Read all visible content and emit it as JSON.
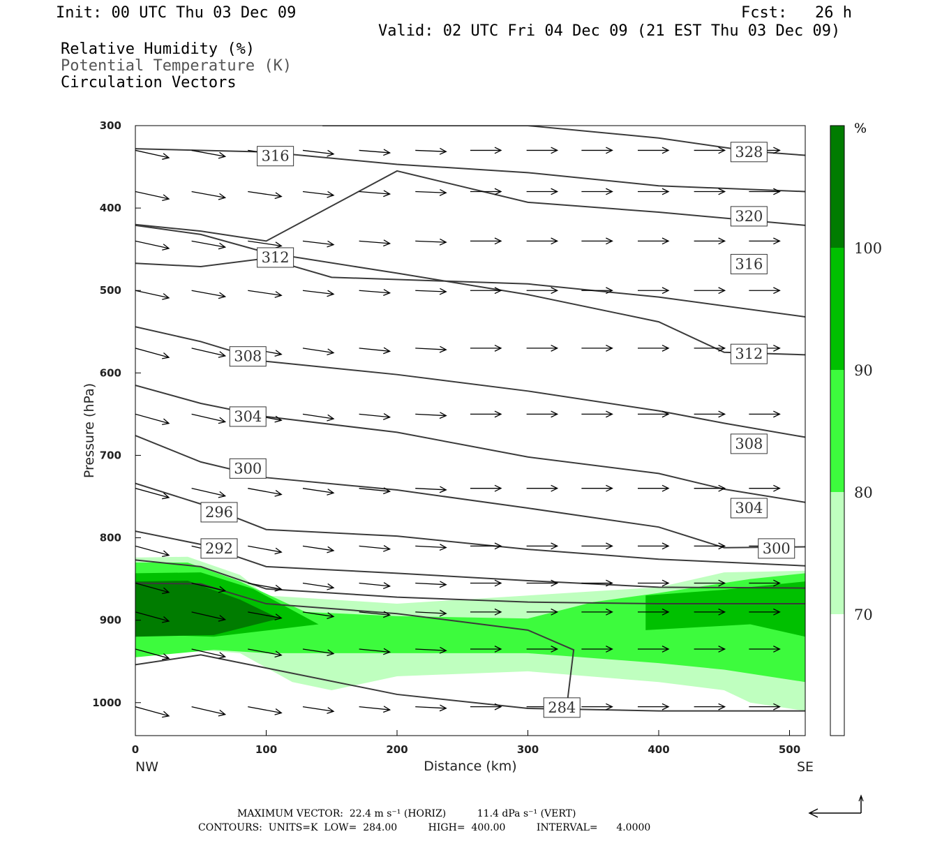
{
  "header": {
    "init": "Init: 00 UTC Thu 03 Dec 09",
    "fcst": "Fcst:   26 h",
    "valid": "Valid: 02 UTC Fri 04 Dec 09 (21 EST Thu 03 Dec 09)",
    "field1": "Relative Humidity (%)",
    "field2": "Potential Temperature (K)",
    "field3": "Circulation Vectors"
  },
  "footer": {
    "line1": "MAXIMUM VECTOR:  22.4 m s⁻¹ (HORIZ)          11.4 dPa s⁻¹ (VERT)",
    "line2": "CONTOURS:  UNITS=K  LOW=  284.00          HIGH=  400.00          INTERVAL=      4.0000"
  },
  "colors": {
    "rh70": "#bfffbf",
    "rh80": "#3dfb3d",
    "rh90": "#00c000",
    "rh100": "#007c00",
    "contour": "#3a3a3a"
  },
  "chart_data": {
    "type": "cross-section",
    "xlabel": "Distance (km)",
    "ylabel": "Pressure (hPa)",
    "x_end_labels": [
      "NW",
      "SE"
    ],
    "xlim": [
      0,
      512
    ],
    "ylim": [
      300,
      1040
    ],
    "x_ticks": [
      0,
      100,
      200,
      300,
      400,
      500
    ],
    "y_ticks": [
      300,
      400,
      500,
      600,
      700,
      800,
      900,
      1000
    ],
    "colorbar": {
      "unit": "%",
      "levels": [
        70,
        80,
        90,
        100
      ]
    },
    "contour_labels": [
      {
        "text": "316",
        "x": 107,
        "p": 337
      },
      {
        "text": "328",
        "x": 469,
        "p": 332
      },
      {
        "text": "320",
        "x": 469,
        "p": 410
      },
      {
        "text": "312",
        "x": 107,
        "p": 460
      },
      {
        "text": "316",
        "x": 469,
        "p": 468
      },
      {
        "text": "312",
        "x": 469,
        "p": 577
      },
      {
        "text": "308",
        "x": 86,
        "p": 580
      },
      {
        "text": "304",
        "x": 86,
        "p": 653
      },
      {
        "text": "308",
        "x": 469,
        "p": 686
      },
      {
        "text": "300",
        "x": 86,
        "p": 716
      },
      {
        "text": "296",
        "x": 64,
        "p": 769
      },
      {
        "text": "304",
        "x": 469,
        "p": 764
      },
      {
        "text": "292",
        "x": 64,
        "p": 813
      },
      {
        "text": "300",
        "x": 490,
        "p": 813
      },
      {
        "text": "284",
        "x": 326,
        "p": 1006
      }
    ],
    "theta_contours": [
      {
        "pts": [
          [
            143,
            300
          ],
          [
            300,
            300
          ],
          [
            400,
            315
          ],
          [
            470,
            331
          ],
          [
            512,
            336
          ]
        ]
      },
      {
        "pts": [
          [
            0,
            328
          ],
          [
            100,
            332
          ],
          [
            200,
            347
          ],
          [
            300,
            357
          ],
          [
            400,
            373
          ],
          [
            512,
            380
          ]
        ]
      },
      {
        "pts": [
          [
            0,
            420
          ],
          [
            50,
            428
          ],
          [
            100,
            440
          ],
          [
            200,
            355
          ],
          [
            300,
            393
          ],
          [
            400,
            405
          ],
          [
            512,
            421
          ]
        ]
      },
      {
        "pts": [
          [
            0,
            467
          ],
          [
            50,
            471
          ],
          [
            100,
            461
          ],
          [
            150,
            484
          ],
          [
            300,
            492
          ],
          [
            400,
            508
          ],
          [
            512,
            532
          ]
        ]
      },
      {
        "pts": [
          [
            0,
            421
          ],
          [
            50,
            432
          ],
          [
            100,
            454
          ],
          [
            200,
            479
          ],
          [
            300,
            505
          ],
          [
            400,
            538
          ],
          [
            450,
            575
          ],
          [
            512,
            578
          ]
        ]
      },
      {
        "pts": [
          [
            0,
            544
          ],
          [
            50,
            562
          ],
          [
            100,
            586
          ],
          [
            200,
            602
          ],
          [
            300,
            622
          ],
          [
            400,
            646
          ],
          [
            450,
            661
          ],
          [
            512,
            678
          ]
        ]
      },
      {
        "pts": [
          [
            0,
            615
          ],
          [
            50,
            637
          ],
          [
            100,
            653
          ],
          [
            200,
            672
          ],
          [
            300,
            702
          ],
          [
            400,
            722
          ],
          [
            450,
            741
          ],
          [
            512,
            757
          ]
        ]
      },
      {
        "pts": [
          [
            0,
            676
          ],
          [
            50,
            708
          ],
          [
            100,
            727
          ],
          [
            200,
            742
          ],
          [
            300,
            764
          ],
          [
            400,
            787
          ],
          [
            450,
            812
          ],
          [
            512,
            811
          ]
        ]
      },
      {
        "pts": [
          [
            0,
            734
          ],
          [
            50,
            759
          ],
          [
            100,
            790
          ],
          [
            200,
            798
          ],
          [
            300,
            814
          ],
          [
            400,
            826
          ],
          [
            512,
            834
          ]
        ]
      },
      {
        "pts": [
          [
            0,
            792
          ],
          [
            50,
            808
          ],
          [
            100,
            835
          ],
          [
            200,
            843
          ],
          [
            300,
            852
          ],
          [
            400,
            860
          ],
          [
            512,
            861
          ]
        ]
      },
      {
        "pts": [
          [
            0,
            827
          ],
          [
            50,
            835
          ],
          [
            100,
            862
          ],
          [
            200,
            872
          ],
          [
            300,
            878
          ],
          [
            400,
            880
          ],
          [
            512,
            880
          ]
        ]
      },
      {
        "pts": [
          [
            0,
            855
          ],
          [
            50,
            856
          ],
          [
            100,
            880
          ],
          [
            200,
            892
          ],
          [
            300,
            912
          ],
          [
            335,
            936
          ],
          [
            330,
            1001
          ]
        ]
      },
      {
        "pts": [
          [
            0,
            954
          ],
          [
            50,
            942
          ],
          [
            100,
            958
          ],
          [
            200,
            990
          ],
          [
            300,
            1007
          ],
          [
            400,
            1010
          ],
          [
            512,
            1010
          ]
        ]
      }
    ],
    "rh_regions": [
      {
        "level": 70,
        "pts": [
          [
            0,
            824
          ],
          [
            40,
            823
          ],
          [
            80,
            845
          ],
          [
            100,
            870
          ],
          [
            200,
            880
          ],
          [
            300,
            870
          ],
          [
            400,
            860
          ],
          [
            450,
            842
          ],
          [
            512,
            840
          ],
          [
            512,
            1010
          ],
          [
            470,
            1000
          ],
          [
            450,
            985
          ],
          [
            400,
            975
          ],
          [
            300,
            962
          ],
          [
            200,
            968
          ],
          [
            150,
            985
          ],
          [
            120,
            975
          ],
          [
            80,
            940
          ],
          [
            0,
            930
          ]
        ]
      },
      {
        "level": 80,
        "pts": [
          [
            0,
            830
          ],
          [
            40,
            830
          ],
          [
            80,
            853
          ],
          [
            130,
            890
          ],
          [
            200,
            895
          ],
          [
            300,
            898
          ],
          [
            350,
            878
          ],
          [
            400,
            867
          ],
          [
            470,
            850
          ],
          [
            512,
            843
          ],
          [
            512,
            975
          ],
          [
            450,
            960
          ],
          [
            400,
            952
          ],
          [
            300,
            940
          ],
          [
            200,
            940
          ],
          [
            100,
            940
          ],
          [
            60,
            936
          ],
          [
            0,
            945
          ]
        ]
      },
      {
        "level": 90,
        "pts": [
          [
            0,
            843
          ],
          [
            50,
            842
          ],
          [
            90,
            862
          ],
          [
            140,
            905
          ],
          [
            60,
            920
          ],
          [
            0,
            917
          ]
        ]
      },
      {
        "level": 90,
        "pts": [
          [
            390,
            870
          ],
          [
            450,
            863
          ],
          [
            512,
            853
          ],
          [
            512,
            920
          ],
          [
            470,
            905
          ],
          [
            390,
            912
          ]
        ]
      },
      {
        "level": 100,
        "pts": [
          [
            0,
            853
          ],
          [
            40,
            852
          ],
          [
            80,
            875
          ],
          [
            110,
            898
          ],
          [
            60,
            918
          ],
          [
            0,
            920
          ]
        ]
      }
    ]
  }
}
